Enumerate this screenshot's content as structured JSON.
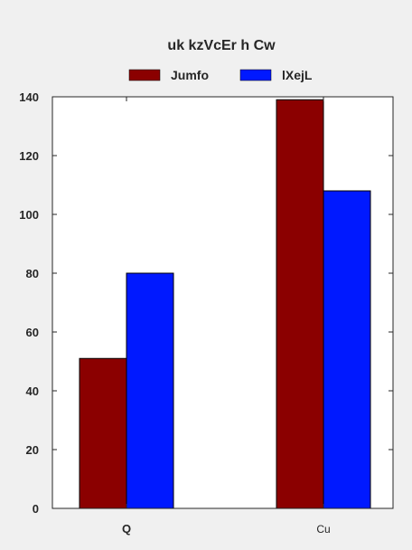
{
  "chart_data": {
    "type": "bar",
    "title": "uk kzVcEr h Cw",
    "xlabel": "",
    "ylabel": "",
    "categories": [
      "Q",
      "Cu"
    ],
    "series": [
      {
        "name": "Jumfo",
        "values": [
          51,
          139
        ],
        "color": "#8b0000"
      },
      {
        "name": "lXejL",
        "values": [
          80,
          108
        ],
        "color": "#0019ff"
      }
    ],
    "ylim": [
      0,
      140
    ],
    "yticks": [
      0,
      20,
      40,
      60,
      80,
      100,
      120,
      140
    ],
    "grid": false,
    "legend_position": "top-center",
    "colors": {
      "background": "#f0f0f0",
      "plot_background": "#ffffff",
      "axis": "#262626"
    }
  }
}
